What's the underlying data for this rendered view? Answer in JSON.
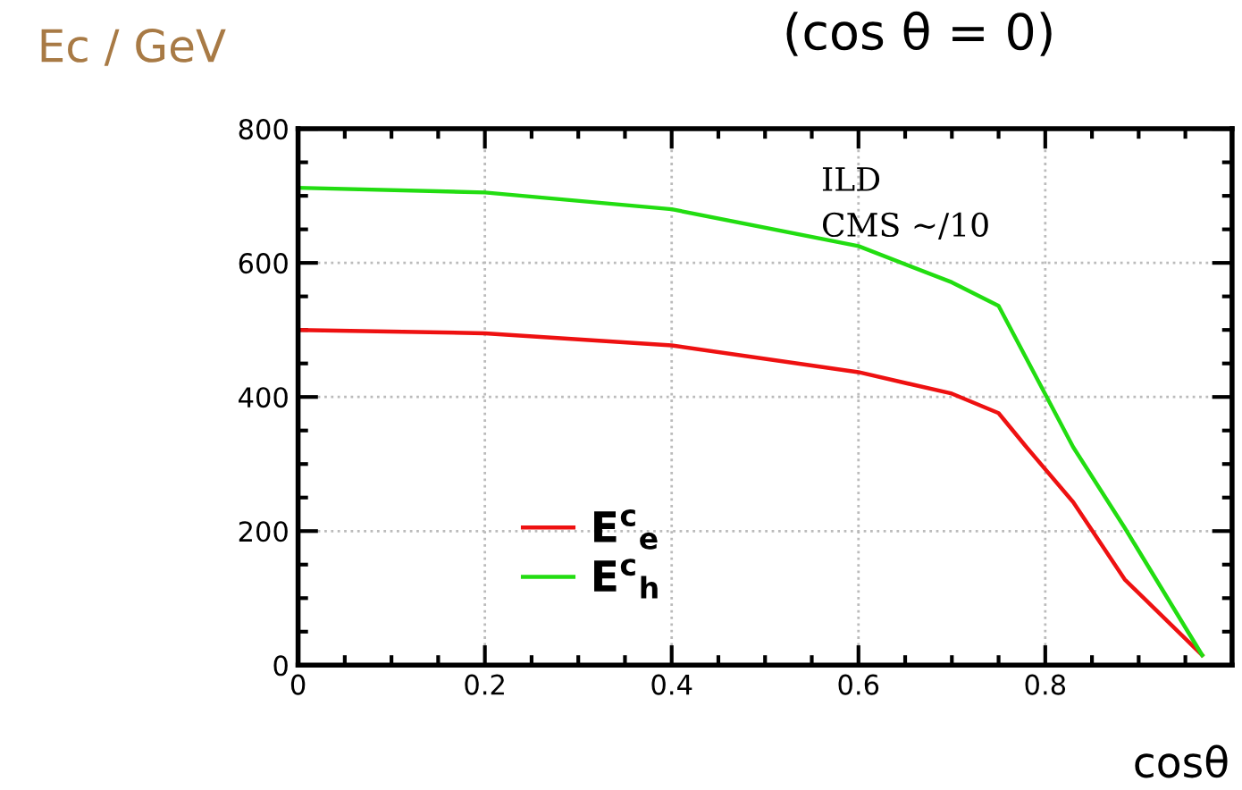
{
  "chart_data": {
    "type": "line",
    "title": "(cos θ = 0)",
    "ylabel": "Ec / GeV",
    "xlabel": "cosθ",
    "annotations": [
      "ILD",
      "CMS ~/10"
    ],
    "xlim": [
      0,
      1
    ],
    "xticks": [
      0,
      0.2,
      0.4,
      0.6,
      0.8,
      {
        "value": 1,
        "label": null
      }
    ],
    "ylim": [
      0,
      800
    ],
    "yticks": [
      0,
      200,
      400,
      600,
      800
    ],
    "grid": true,
    "legend": "bottom left",
    "marker": "none",
    "line_style": "solid",
    "series": [
      {
        "name": "E$^{c}$$_{e}$",
        "color": "#ee1111",
        "x": [
          0,
          0.2,
          0.4,
          0.6,
          0.7,
          0.75,
          0.78,
          0.83,
          0.885,
          0.968
        ],
        "values": [
          500,
          495,
          477,
          437,
          405,
          376,
          325,
          243,
          128,
          15
        ]
      },
      {
        "name": "E$^{c}$$_{h}$",
        "color": "#22dd11",
        "x": [
          0,
          0.2,
          0.4,
          0.6,
          0.7,
          0.75,
          0.83,
          0.885,
          0.968
        ],
        "values": [
          712,
          705,
          680,
          625,
          571,
          536,
          325,
          205,
          15
        ]
      }
    ]
  }
}
